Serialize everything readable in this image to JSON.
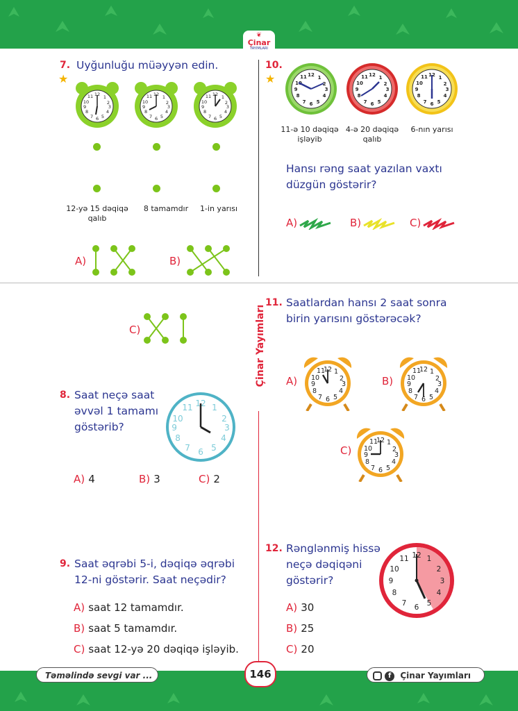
{
  "brand": {
    "name": "Çinar",
    "tag": "YAYIMLARI"
  },
  "side_label": "Çinar Yayımları",
  "q7": {
    "number": "7.",
    "text": "Uyğunluğu müəyyən edin.",
    "labels": [
      "12-yə 15 dəqiqə qalıb",
      "8 tamamdır",
      "1-in yarısı"
    ],
    "options": [
      "A)",
      "B)",
      "C)"
    ]
  },
  "q10": {
    "number": "10.",
    "captions": [
      "11-ə 10 dəqiqə işləyib",
      "4-ə 20 dəqiqə qalıb",
      "6-nın yarısı"
    ],
    "text1": "Hansı rəng saat yazılan vaxtı",
    "text2": "düzgün göstərir?",
    "options": [
      {
        "label": "A)",
        "color": "#2fa84a"
      },
      {
        "label": "B)",
        "color": "#e9e22a"
      },
      {
        "label": "C)",
        "color": "#e0253a"
      }
    ]
  },
  "q8": {
    "number": "8.",
    "text1": "Saat neçə saat",
    "text2": "əvvəl 1 tamamı",
    "text3": "göstərib?",
    "options": [
      {
        "label": "A)",
        "value": "4"
      },
      {
        "label": "B)",
        "value": "3"
      },
      {
        "label": "C)",
        "value": "2"
      }
    ]
  },
  "q9": {
    "number": "9.",
    "text1": "Saat əqrəbi 5-i, dəqiqə əqrəbi",
    "text2": "12-ni göstərir. Saat neçədir?",
    "options": [
      {
        "label": "A)",
        "value": "saat 12 tamamdır."
      },
      {
        "label": "B)",
        "value": "saat 5 tamamdır."
      },
      {
        "label": "C)",
        "value": "saat 12-yə 20 dəqiqə işləyib."
      }
    ]
  },
  "q11": {
    "number": "11.",
    "text1": "Saatlardan hansı 2 saat sonra",
    "text2": "birin yarısını göstərəcək?",
    "options": [
      "A)",
      "B)",
      "C)"
    ]
  },
  "q12": {
    "number": "12.",
    "text1": "Rənglənmiş hissə",
    "text2": "neçə dəqiqəni",
    "text3": "göstərir?",
    "options": [
      {
        "label": "A)",
        "value": "30"
      },
      {
        "label": "B)",
        "value": "25"
      },
      {
        "label": "C)",
        "value": "20"
      }
    ]
  },
  "footer": {
    "motto": "Təməlində sevgi var ...",
    "page": "146",
    "publisher": "Çinar Yayımları"
  }
}
